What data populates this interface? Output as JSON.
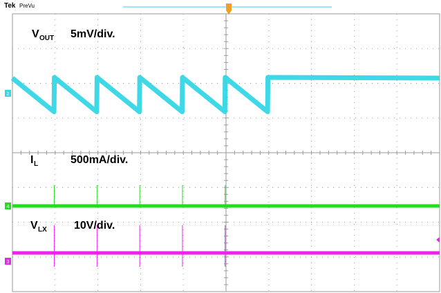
{
  "header": {
    "brand": "Tek",
    "mode": "PreVu"
  },
  "labels": {
    "vout_main": "V",
    "vout_sub": "OUT",
    "vout_scale": "5mV/div.",
    "il_main": "I",
    "il_sub": "L",
    "il_scale": "500mA/div.",
    "vlx_main": "V",
    "vlx_sub": "LX",
    "vlx_scale": "10V/div."
  },
  "markers": {
    "ch2": "2",
    "ch4": "4",
    "ch3": "3"
  },
  "colors": {
    "vout": "#35d6e6",
    "il": "#22dd22",
    "vlx": "#ee22ee",
    "grid": "#9a9a9a",
    "trigger": "#f0a020"
  },
  "chart_data": {
    "type": "line",
    "grid": true,
    "divisions": {
      "x": 10,
      "y": 8
    },
    "series": [
      {
        "name": "VOUT",
        "scale": "5mV/div.",
        "shape": "sawtooth",
        "ripple_div": 0.45,
        "ramp_start_x_div": [
          0.98,
          1.98,
          2.98,
          3.98,
          4.98
        ]
      },
      {
        "name": "IL",
        "scale": "500mA/div.",
        "shape": "flat with spikes",
        "spike_x_div": [
          0.98,
          1.98,
          2.98,
          3.98,
          4.98
        ]
      },
      {
        "name": "VLX",
        "scale": "10V/div.",
        "shape": "flat with spikes",
        "spike_x_div": [
          0.98,
          1.98,
          2.98,
          3.98,
          4.98
        ]
      }
    ]
  }
}
